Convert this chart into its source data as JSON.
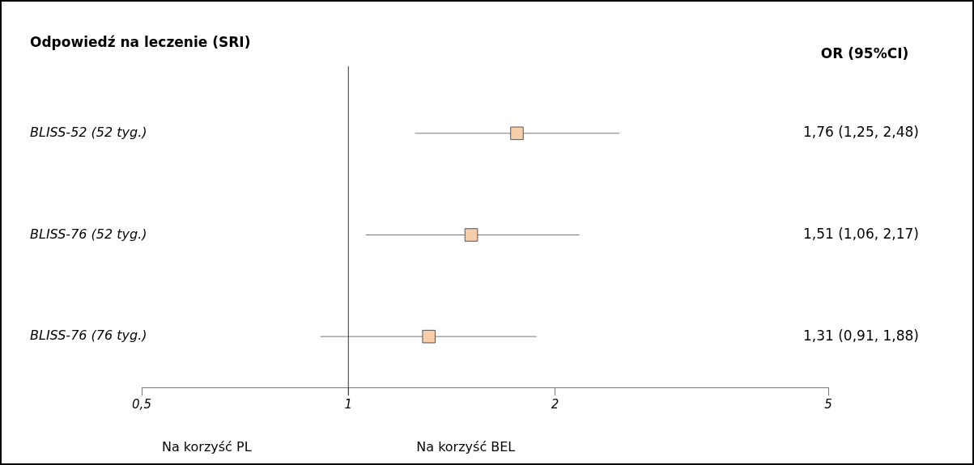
{
  "chart_data": {
    "type": "scatter",
    "orientation": "horizontal",
    "title": "Odpowiedź na leczenie (SRI)",
    "categories": [
      "BLISS-52 (52 tyg.)",
      "BLISS-76 (52 tyg.)",
      "BLISS-76 (76 tyg.)"
    ],
    "values": [
      1.76,
      1.51,
      1.31
    ],
    "errors": [
      [
        1.25,
        2.48
      ],
      [
        1.06,
        2.17
      ],
      [
        0.91,
        1.88
      ]
    ],
    "value_labels": [
      "1,76 (1,25, 2,48)",
      "1,51 (1,06, 2,17)",
      "1,31 (0,91, 1,88)"
    ],
    "color": "#f8cdaa",
    "marker": "square",
    "log": "x",
    "xlim": [
      0.5,
      5
    ],
    "xticks": [
      {
        "value": 0.5,
        "label": "0,5"
      },
      1,
      2,
      5
    ],
    "ref_lines": [
      {
        "axis": "x",
        "value": 1
      }
    ],
    "annotations": [
      "OR (95%CI)",
      "Na korzyść PL",
      "Na korzyść BEL"
    ],
    "grid": false,
    "legend": false
  }
}
